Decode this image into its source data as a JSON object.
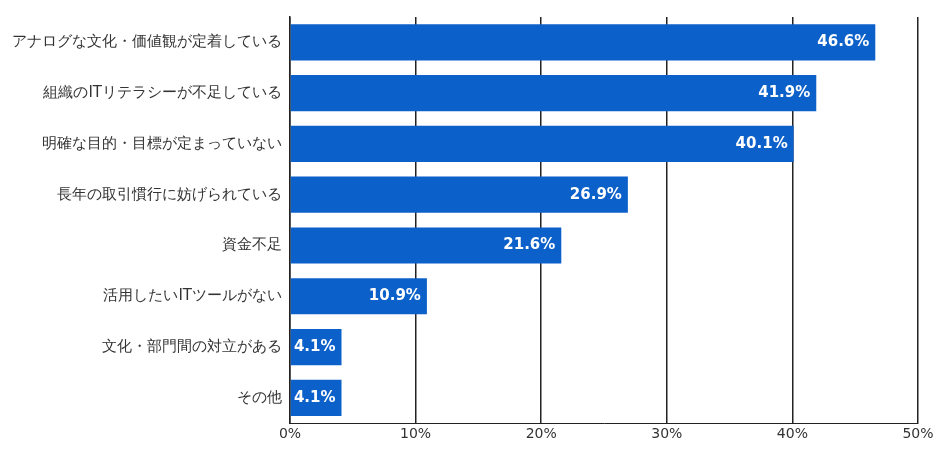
{
  "chart_data": {
    "type": "bar",
    "orientation": "horizontal",
    "categories": [
      "アナログな文化・価値観が定着している",
      "組織のITリテラシーが不足している",
      "明確な目的・目標が定まっていない",
      "長年の取引慣行に妨げられている",
      "資金不足",
      "活用したいITツールがない",
      "文化・部門間の対立がある",
      "その他"
    ],
    "values": [
      46.6,
      41.9,
      40.1,
      26.9,
      21.6,
      10.9,
      4.1,
      4.1
    ],
    "value_labels": [
      "46.6%",
      "41.9%",
      "40.1%",
      "26.9%",
      "21.6%",
      "10.9%",
      "4.1%",
      "4.1%"
    ],
    "data_labels": true,
    "color": "#0b60c9",
    "xlim": [
      0,
      50
    ],
    "xticks": [
      {
        "value": 0,
        "label": "0%"
      },
      {
        "value": 10,
        "label": "10%"
      },
      {
        "value": 20,
        "label": "20%"
      },
      {
        "value": 30,
        "label": "30%"
      },
      {
        "value": 40,
        "label": "40%"
      },
      {
        "value": 50,
        "label": "50%"
      }
    ],
    "grid": true
  }
}
